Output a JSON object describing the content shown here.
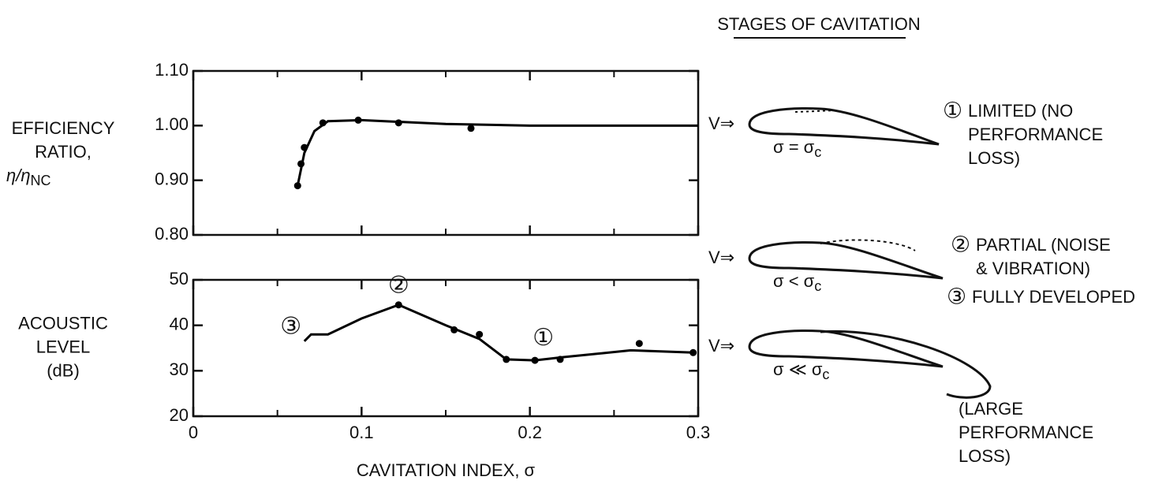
{
  "chart_data": [
    {
      "type": "scatter",
      "ylabel": [
        "EFFICIENCY",
        "RATIO,"
      ],
      "ylabel_symbol": "η/η",
      "ylabel_subscript": "NC",
      "xlim": [
        0,
        0.3
      ],
      "xticks": [
        0,
        0.1,
        0.2,
        0.3
      ],
      "xminorticks": [
        0.05,
        0.15,
        0.25
      ],
      "show_xtick_labels": false,
      "ylim": [
        0.8,
        1.1
      ],
      "yticks": [
        {
          "value": 0.8,
          "label": "0.80"
        },
        {
          "value": 0.9,
          "label": "0.90"
        },
        {
          "value": 1.0,
          "label": "1.00"
        },
        {
          "value": 1.1,
          "label": "1.10"
        }
      ],
      "color": "#000000",
      "series": [
        {
          "type": "line",
          "x": [
            0.062,
            0.066,
            0.072,
            0.08,
            0.1,
            0.15,
            0.2,
            0.3
          ],
          "values": [
            0.89,
            0.95,
            0.99,
            1.008,
            1.01,
            1.003,
            1.0,
            1.0
          ]
        },
        {
          "type": "scatter",
          "x": [
            0.062,
            0.064,
            0.066,
            0.077,
            0.098,
            0.122,
            0.165
          ],
          "values": [
            0.89,
            0.93,
            0.96,
            1.005,
            1.01,
            1.005,
            0.995
          ]
        }
      ]
    },
    {
      "type": "scatter",
      "ylabel": [
        "ACOUSTIC",
        "LEVEL",
        "(dB)"
      ],
      "xlabel": "CAVITATION INDEX, σ",
      "xlim": [
        0,
        0.3
      ],
      "xticks": [
        0,
        0.1,
        0.2,
        0.3
      ],
      "xminorticks": [
        0.05,
        0.15,
        0.25
      ],
      "show_xtick_labels": true,
      "ylim": [
        20,
        50
      ],
      "yticks": [
        20,
        30,
        40,
        50
      ],
      "color": "#000000",
      "series": [
        {
          "type": "line",
          "x": [
            0.066,
            0.07,
            0.08,
            0.1,
            0.122,
            0.15,
            0.17,
            0.186,
            0.203,
            0.22,
            0.26,
            0.297
          ],
          "values": [
            36.5,
            38,
            38,
            41.5,
            44.5,
            40,
            37,
            32.5,
            32.3,
            33,
            34.5,
            34
          ]
        },
        {
          "type": "scatter",
          "x": [
            0.122,
            0.155,
            0.17,
            0.186,
            0.203,
            0.218,
            0.265,
            0.297
          ],
          "values": [
            44.5,
            39,
            38,
            32.5,
            32.3,
            32.5,
            36,
            34
          ]
        }
      ],
      "annotations": [
        {
          "text": "③",
          "x": 0.058,
          "y": 39.5
        },
        {
          "text": "②",
          "x": 0.122,
          "y": 48.5
        },
        {
          "text": "①",
          "x": 0.208,
          "y": 37
        }
      ]
    }
  ],
  "stages": {
    "title": "STAGES OF CAVITATION",
    "velocity": "V⇒",
    "subscript": "c",
    "items": [
      {
        "number": "①",
        "condition": "σ = σ",
        "label": [
          "LIMITED (NO",
          "PERFORMANCE",
          "LOSS)"
        ]
      },
      {
        "number": "②",
        "condition": "σ < σ",
        "label": [
          "PARTIAL (NOISE",
          "& VIBRATION)"
        ]
      },
      {
        "number": "③",
        "condition": "σ ≪ σ",
        "label": [
          "FULLY DEVELOPED"
        ],
        "note": [
          "(LARGE",
          "PERFORMANCE",
          "LOSS)"
        ]
      }
    ]
  }
}
